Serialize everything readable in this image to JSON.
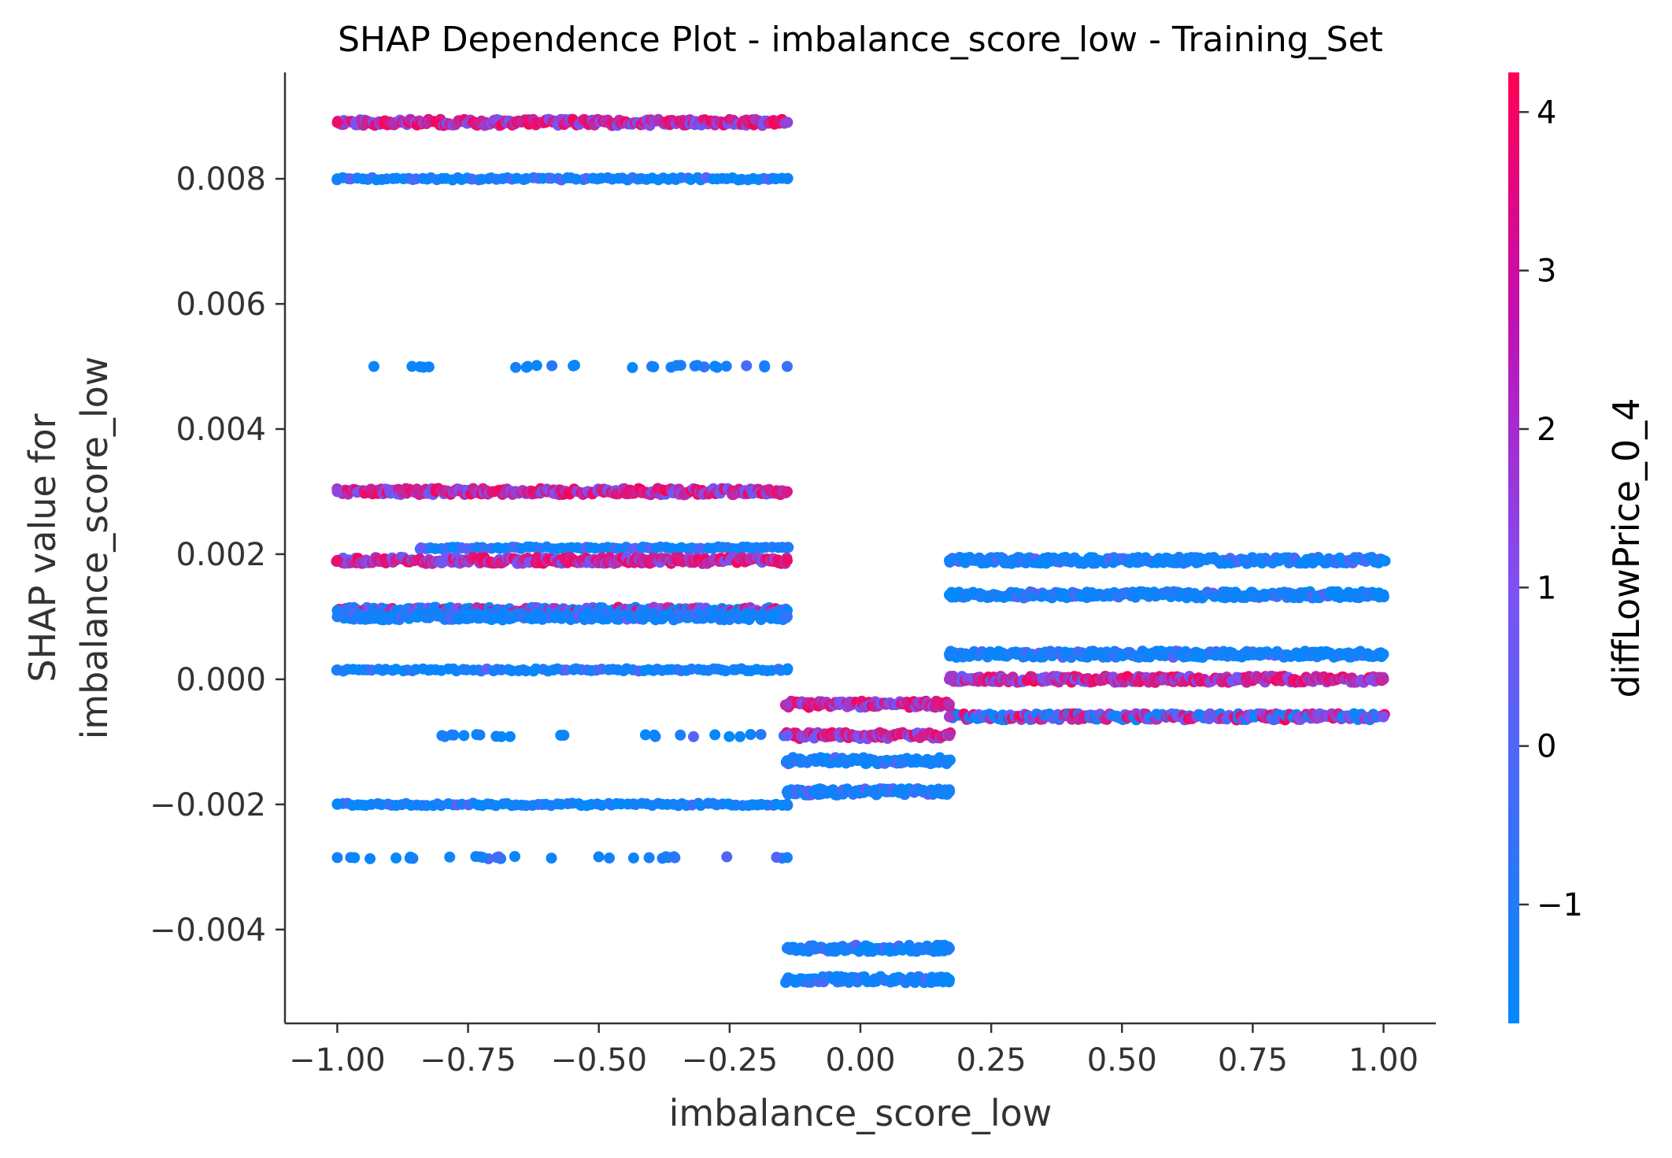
{
  "chart_data": {
    "type": "scatter",
    "title": "SHAP Dependence Plot - imbalance_score_low - Training_Set",
    "xlabel": "imbalance_score_low",
    "ylabel_line1": "SHAP value for",
    "ylabel_line2": "imbalance_score_low",
    "xlim": [
      -1.1,
      1.1
    ],
    "ylim": [
      -0.0055,
      0.0097
    ],
    "xticks": [
      -1.0,
      -0.75,
      -0.5,
      -0.25,
      0.0,
      0.25,
      0.5,
      0.75,
      1.0
    ],
    "xtick_labels": [
      "−1.00",
      "−0.75",
      "−0.50",
      "−0.25",
      "0.00",
      "0.25",
      "0.50",
      "0.75",
      "1.00"
    ],
    "yticks": [
      -0.004,
      -0.002,
      0.0,
      0.002,
      0.004,
      0.006,
      0.008
    ],
    "ytick_labels": [
      "−0.004",
      "−0.002",
      "0.000",
      "0.002",
      "0.004",
      "0.006",
      "0.008"
    ],
    "colorbar": {
      "label": "diffLowPrice_0_4",
      "range": [
        -1.75,
        4.25
      ],
      "ticks": [
        -1,
        0,
        1,
        2,
        3,
        4
      ],
      "tick_labels": [
        "−1",
        "0",
        "1",
        "2",
        "3",
        "4"
      ],
      "color_low": "#008afb",
      "color_mid": "#7c52f7",
      "color_high": "#ff0052"
    },
    "bands": [
      {
        "x_range": [
          -1.0,
          -0.14
        ],
        "y": 0.0089,
        "color_mix": "high",
        "density": "dense"
      },
      {
        "x_range": [
          -1.0,
          -0.14
        ],
        "y": 0.008,
        "color_mix": "low",
        "density": "medium"
      },
      {
        "x_range": [
          -0.93,
          -0.14
        ],
        "y": 0.005,
        "color_mix": "low",
        "density": "sparse"
      },
      {
        "x_range": [
          -1.0,
          -0.14
        ],
        "y": 0.003,
        "color_mix": "high",
        "density": "dense"
      },
      {
        "x_range": [
          -0.84,
          -0.14
        ],
        "y": 0.0021,
        "color_mix": "low",
        "density": "medium"
      },
      {
        "x_range": [
          -1.0,
          -0.14
        ],
        "y": 0.0019,
        "color_mix": "high",
        "density": "dense"
      },
      {
        "x_range": [
          -1.0,
          -0.14
        ],
        "y": 0.0011,
        "color_mix": "mixed",
        "density": "dense"
      },
      {
        "x_range": [
          -1.0,
          -0.14
        ],
        "y": 0.001,
        "color_mix": "low",
        "density": "dense"
      },
      {
        "x_range": [
          -1.0,
          -0.14
        ],
        "y": 0.00015,
        "color_mix": "low",
        "density": "medium"
      },
      {
        "x_range": [
          -0.8,
          -0.14
        ],
        "y": -0.0009,
        "color_mix": "low",
        "density": "sparse"
      },
      {
        "x_range": [
          -1.0,
          -0.14
        ],
        "y": -0.002,
        "color_mix": "low",
        "density": "medium"
      },
      {
        "x_range": [
          -1.0,
          -0.14
        ],
        "y": -0.00285,
        "color_mix": "low",
        "density": "sparse"
      },
      {
        "x_range": [
          -0.14,
          0.17
        ],
        "y": -0.0004,
        "color_mix": "high",
        "density": "dense"
      },
      {
        "x_range": [
          -0.14,
          0.17
        ],
        "y": -0.0009,
        "color_mix": "high",
        "density": "dense"
      },
      {
        "x_range": [
          -0.14,
          0.17
        ],
        "y": -0.0013,
        "color_mix": "low",
        "density": "dense"
      },
      {
        "x_range": [
          -0.14,
          0.17
        ],
        "y": -0.0018,
        "color_mix": "low",
        "density": "dense"
      },
      {
        "x_range": [
          -0.14,
          0.17
        ],
        "y": -0.0043,
        "color_mix": "low",
        "density": "dense"
      },
      {
        "x_range": [
          -0.14,
          0.17
        ],
        "y": -0.0048,
        "color_mix": "low",
        "density": "dense"
      },
      {
        "x_range": [
          0.17,
          1.0
        ],
        "y": 0.0019,
        "color_mix": "low",
        "density": "dense"
      },
      {
        "x_range": [
          0.17,
          1.0
        ],
        "y": 0.00135,
        "color_mix": "low",
        "density": "dense"
      },
      {
        "x_range": [
          0.17,
          1.0
        ],
        "y": 0.0004,
        "color_mix": "low",
        "density": "dense"
      },
      {
        "x_range": [
          0.17,
          1.0
        ],
        "y": 0.0,
        "color_mix": "high",
        "density": "dense"
      },
      {
        "x_range": [
          0.17,
          1.0
        ],
        "y": -0.0006,
        "color_mix": "mixed",
        "density": "dense"
      }
    ]
  }
}
